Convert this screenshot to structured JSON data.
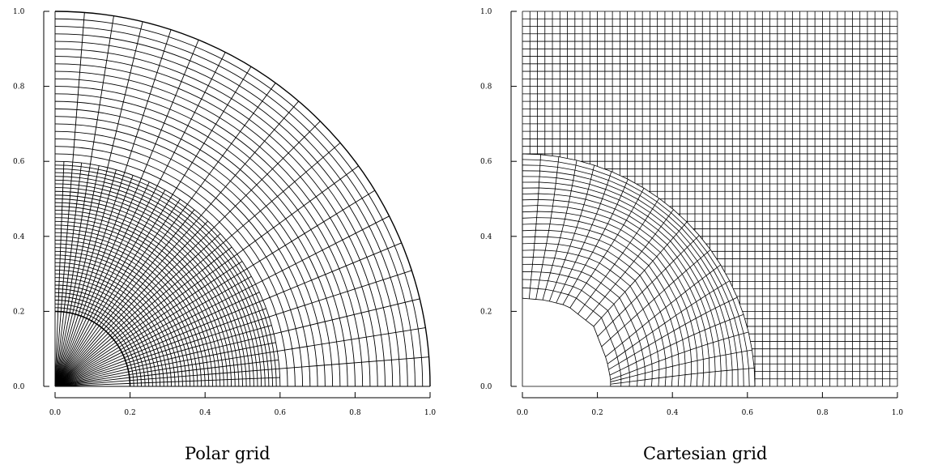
{
  "panels": [
    {
      "caption": "Polar grid",
      "x_ticks": [
        "0.0",
        "0.2",
        "0.4",
        "0.6",
        "0.8",
        "1.0"
      ],
      "y_ticks": [
        "0.0",
        "0.2",
        "0.4",
        "0.6",
        "0.8",
        "1.0"
      ]
    },
    {
      "caption": "Cartesian grid",
      "x_ticks": [
        "0.0",
        "0.2",
        "0.4",
        "0.6",
        "0.8",
        "1.0"
      ],
      "y_ticks": [
        "0.0",
        "0.2",
        "0.4",
        "0.6",
        "0.8",
        "1.0"
      ]
    }
  ]
}
